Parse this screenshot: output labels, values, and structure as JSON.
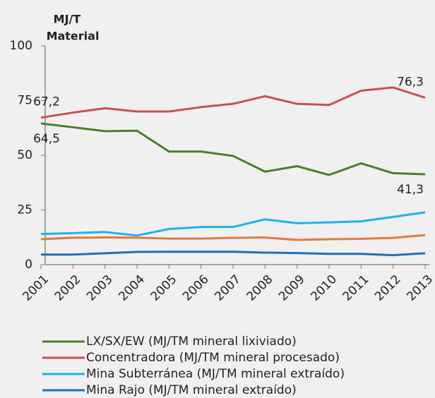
{
  "chart_data": {
    "type": "line",
    "y_label": [
      "MJ/T",
      "Material"
    ],
    "categories": [
      "2001",
      "2002",
      "2003",
      "2004",
      "2005",
      "2006",
      "2007",
      "2008",
      "2009",
      "2010",
      "2011",
      "2012",
      "2013"
    ],
    "series": [
      {
        "name": "LX/SX/EW (MJ/TM mineral lixiviado)",
        "color": "#4b7f2a",
        "values": [
          64.5,
          62.8,
          61,
          61.2,
          51.7,
          51.7,
          49.7,
          42.5,
          45,
          41,
          46.3,
          41.8,
          41.3
        ],
        "value_labels": [
          "64,5",
          null,
          null,
          null,
          null,
          null,
          null,
          null,
          null,
          null,
          null,
          null,
          "41,3"
        ]
      },
      {
        "name": "Concentradora (MJ/TM mineral procesado)",
        "color": "#c9504c",
        "values": [
          67.2,
          69.5,
          71.5,
          70,
          70,
          72,
          73.5,
          77,
          73.5,
          73,
          79.5,
          81,
          76.3
        ],
        "value_labels": [
          "67,2",
          null,
          null,
          null,
          null,
          null,
          null,
          null,
          null,
          null,
          null,
          null,
          "76,3"
        ]
      },
      {
        "name": "Mina Subterránea (MJ/TM mineral extraído)",
        "color": "#1cb3ec",
        "values": [
          14,
          14.4,
          14.9,
          13.3,
          16.3,
          17.2,
          17.2,
          20.7,
          18.9,
          19.3,
          19.8,
          21.8,
          23.9
        ]
      },
      {
        "name": null,
        "color": "#e2793a",
        "values": [
          11.6,
          12.3,
          12.4,
          12.3,
          11.9,
          11.9,
          12.2,
          12.4,
          11.3,
          11.6,
          11.8,
          12.2,
          13.5
        ]
      },
      {
        "name": "Mina Rajo (MJ/TM mineral extraído)",
        "color": "#1d6fbd",
        "values": [
          4.6,
          4.6,
          5.2,
          5.8,
          5.9,
          5.9,
          5.9,
          5.5,
          5.3,
          4.9,
          4.9,
          4.3,
          5.2
        ]
      }
    ],
    "ylim": [
      0,
      100
    ],
    "yticks": [
      0,
      25,
      50,
      75,
      100
    ],
    "grid": false
  }
}
